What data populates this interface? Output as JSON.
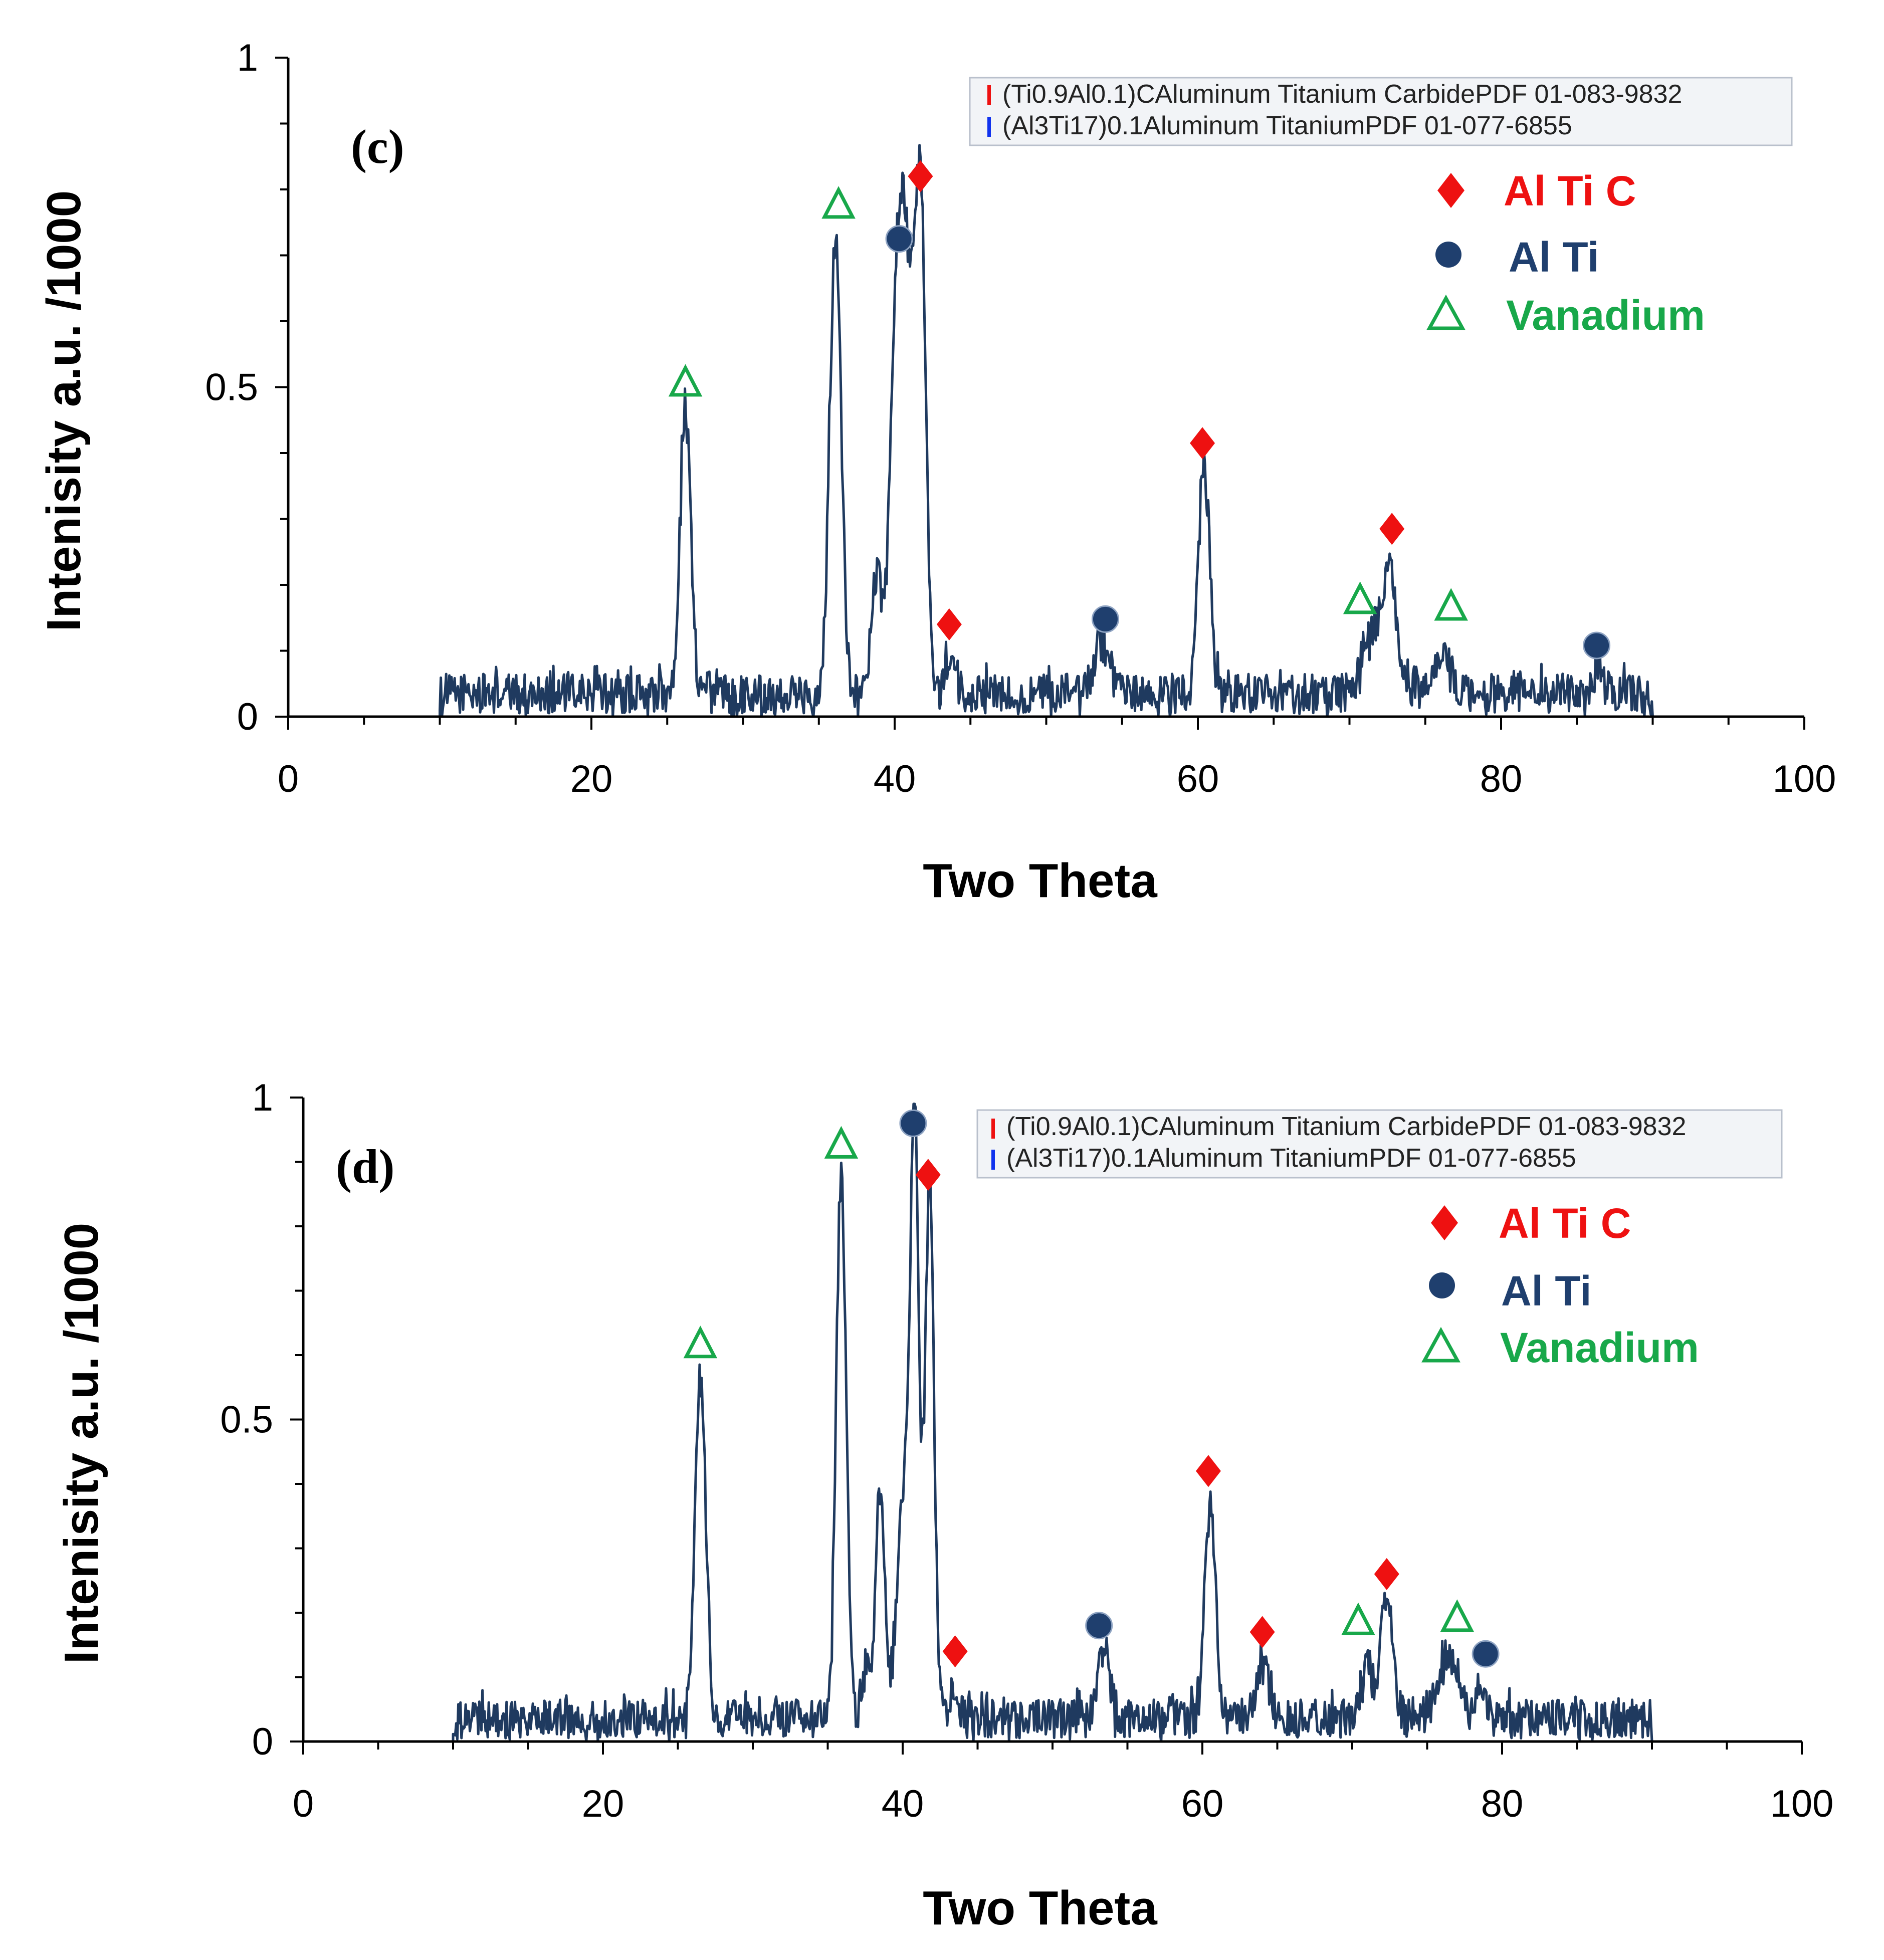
{
  "colors": {
    "trace": "#1f3a5f",
    "al_ti_c": "#ee1111",
    "al_ti": "#1f3f6e",
    "vanadium": "#18a84a",
    "legend_bar_1": "#ee1111",
    "legend_bar_2": "#1133ee",
    "legend_bg": "#f2f4f7",
    "legend_border": "#b9c0cc"
  },
  "chart_data": [
    {
      "type": "line",
      "panel_label": "(c)",
      "title": "",
      "xlabel": "Two Theta",
      "ylabel": "Intenisity  a.u. /1000",
      "xlim": [
        0,
        100
      ],
      "ylim": [
        0,
        1
      ],
      "xticks": [
        0,
        20,
        40,
        60,
        80,
        100
      ],
      "yticks": [
        0,
        0.5,
        1
      ],
      "ytick_labels": [
        "0",
        "0.5",
        "1"
      ],
      "grid": false,
      "x_range": [
        10,
        90
      ],
      "baseline": 0.035,
      "noise": 0.03,
      "peaks": [
        {
          "x": 26.2,
          "h": 0.44,
          "w": 0.35
        },
        {
          "x": 36.1,
          "h": 0.7,
          "w": 0.38
        },
        {
          "x": 38.8,
          "h": 0.18,
          "w": 0.35
        },
        {
          "x": 40.2,
          "h": 0.62,
          "w": 0.45
        },
        {
          "x": 40.9,
          "h": 0.45,
          "w": 0.4
        },
        {
          "x": 41.7,
          "h": 0.74,
          "w": 0.35
        },
        {
          "x": 43.6,
          "h": 0.06,
          "w": 0.25
        },
        {
          "x": 53.6,
          "h": 0.08,
          "w": 0.45
        },
        {
          "x": 60.4,
          "h": 0.34,
          "w": 0.4
        },
        {
          "x": 71.3,
          "h": 0.09,
          "w": 0.5
        },
        {
          "x": 72.6,
          "h": 0.19,
          "w": 0.5
        },
        {
          "x": 76.2,
          "h": 0.07,
          "w": 0.5
        },
        {
          "x": 86.3,
          "h": 0.03,
          "w": 0.4
        }
      ],
      "markers": [
        {
          "type": "diamond",
          "phase": "Al Ti C",
          "x": 41.7,
          "y": 0.82
        },
        {
          "type": "diamond",
          "phase": "Al Ti C",
          "x": 43.6,
          "y": 0.14
        },
        {
          "type": "diamond",
          "phase": "Al Ti C",
          "x": 60.3,
          "y": 0.415
        },
        {
          "type": "diamond",
          "phase": "Al Ti C",
          "x": 72.8,
          "y": 0.285
        },
        {
          "type": "circle",
          "phase": "Al Ti",
          "x": 40.3,
          "y": 0.725
        },
        {
          "type": "circle",
          "phase": "Al Ti",
          "x": 53.9,
          "y": 0.148
        },
        {
          "type": "circle",
          "phase": "Al Ti",
          "x": 86.3,
          "y": 0.108
        },
        {
          "type": "triangle",
          "phase": "Vanadium",
          "x": 26.2,
          "y": 0.505
        },
        {
          "type": "triangle",
          "phase": "Vanadium",
          "x": 36.3,
          "y": 0.775
        },
        {
          "type": "triangle",
          "phase": "Vanadium",
          "x": 70.7,
          "y": 0.175
        },
        {
          "type": "triangle",
          "phase": "Vanadium",
          "x": 76.7,
          "y": 0.165
        }
      ],
      "reference_legend": [
        "(Ti0.9Al0.1)CAluminum Titanium CarbidePDF 01-083-9832",
        "(Al3Ti17)0.1Aluminum TitaniumPDF 01-077-6855"
      ],
      "phase_legend": [
        {
          "marker": "diamond",
          "label": "Al Ti C"
        },
        {
          "marker": "circle",
          "label": "Al Ti"
        },
        {
          "marker": "triangle",
          "label": "Vanadium"
        }
      ]
    },
    {
      "type": "line",
      "panel_label": "(d)",
      "title": "",
      "xlabel": "Two Theta",
      "ylabel": "Intenisity  a.u. /1000",
      "xlim": [
        0,
        100
      ],
      "ylim": [
        0,
        1
      ],
      "xticks": [
        0,
        20,
        40,
        60,
        80,
        100
      ],
      "yticks": [
        0,
        0.5,
        1
      ],
      "ytick_labels": [
        "0",
        "0.5",
        "1"
      ],
      "grid": false,
      "x_range": [
        10,
        90
      ],
      "baseline": 0.035,
      "noise": 0.03,
      "peaks": [
        {
          "x": 26.5,
          "h": 0.54,
          "w": 0.35
        },
        {
          "x": 35.9,
          "h": 0.85,
          "w": 0.33
        },
        {
          "x": 37.5,
          "h": 0.08,
          "w": 0.25
        },
        {
          "x": 38.5,
          "h": 0.36,
          "w": 0.3
        },
        {
          "x": 40.0,
          "h": 0.33,
          "w": 0.4
        },
        {
          "x": 40.8,
          "h": 0.92,
          "w": 0.3
        },
        {
          "x": 41.8,
          "h": 0.82,
          "w": 0.3
        },
        {
          "x": 43.5,
          "h": 0.05,
          "w": 0.25
        },
        {
          "x": 53.4,
          "h": 0.11,
          "w": 0.4
        },
        {
          "x": 60.5,
          "h": 0.34,
          "w": 0.38
        },
        {
          "x": 64.0,
          "h": 0.08,
          "w": 0.45
        },
        {
          "x": 71.0,
          "h": 0.09,
          "w": 0.4
        },
        {
          "x": 72.3,
          "h": 0.19,
          "w": 0.4
        },
        {
          "x": 76.5,
          "h": 0.1,
          "w": 0.7
        },
        {
          "x": 78.6,
          "h": 0.06,
          "w": 0.3
        }
      ],
      "markers": [
        {
          "type": "diamond",
          "phase": "Al Ti C",
          "x": 41.7,
          "y": 0.88
        },
        {
          "type": "diamond",
          "phase": "Al Ti C",
          "x": 43.5,
          "y": 0.14
        },
        {
          "type": "diamond",
          "phase": "Al Ti C",
          "x": 60.4,
          "y": 0.42
        },
        {
          "type": "diamond",
          "phase": "Al Ti C",
          "x": 64.0,
          "y": 0.17
        },
        {
          "type": "diamond",
          "phase": "Al Ti C",
          "x": 72.3,
          "y": 0.26
        },
        {
          "type": "circle",
          "phase": "Al Ti",
          "x": 40.7,
          "y": 0.96
        },
        {
          "type": "circle",
          "phase": "Al Ti",
          "x": 53.1,
          "y": 0.18
        },
        {
          "type": "circle",
          "phase": "Al Ti",
          "x": 78.9,
          "y": 0.136
        },
        {
          "type": "triangle",
          "phase": "Vanadium",
          "x": 26.5,
          "y": 0.615
        },
        {
          "type": "triangle",
          "phase": "Vanadium",
          "x": 35.9,
          "y": 0.925
        },
        {
          "type": "triangle",
          "phase": "Vanadium",
          "x": 70.4,
          "y": 0.185
        },
        {
          "type": "triangle",
          "phase": "Vanadium",
          "x": 77.0,
          "y": 0.19
        }
      ],
      "reference_legend": [
        "(Ti0.9Al0.1)CAluminum Titanium CarbidePDF 01-083-9832",
        "(Al3Ti17)0.1Aluminum TitaniumPDF 01-077-6855"
      ],
      "phase_legend": [
        {
          "marker": "diamond",
          "label": "Al Ti C"
        },
        {
          "marker": "circle",
          "label": "Al Ti"
        },
        {
          "marker": "triangle",
          "label": "Vanadium"
        }
      ]
    }
  ]
}
